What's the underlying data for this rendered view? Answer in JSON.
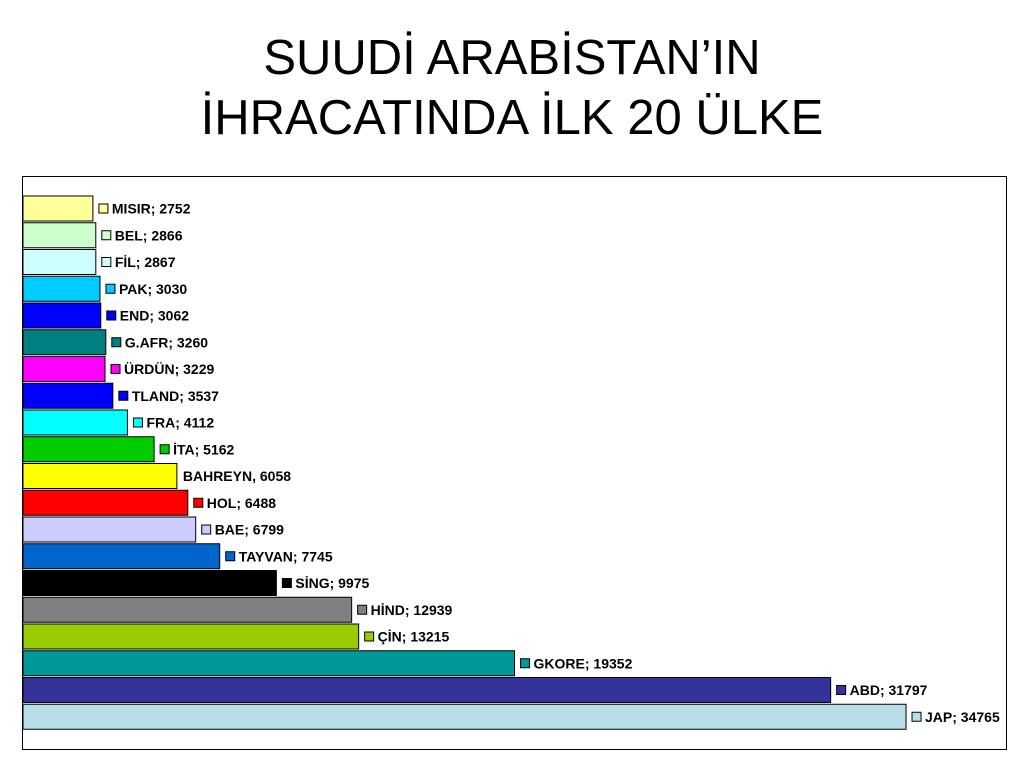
{
  "title": {
    "line1": "SUUDİ ARABİSTAN’IN",
    "line2": "İHRACATINDA İLK 20 ÜLKE"
  },
  "chart_data": {
    "type": "bar",
    "orientation": "horizontal",
    "title": "SUUDİ ARABİSTAN’IN İHRACATINDA İLK 20 ÜLKE",
    "xlabel": "",
    "ylabel": "",
    "grid": false,
    "legend": "none",
    "categories": [
      "MISIR",
      "BEL",
      "FİL",
      "PAK",
      "END",
      "G.AFR",
      "ÜRDÜN",
      "TLAND",
      "FRA",
      "İTA",
      "BAHREYN",
      "HOL",
      "BAE",
      "TAYVAN",
      "SİNG",
      "HİND",
      "ÇİN",
      "GKORE",
      "ABD",
      "JAP"
    ],
    "values": [
      2752,
      2866,
      2867,
      3030,
      3062,
      3260,
      3229,
      3537,
      4112,
      5162,
      6058,
      6488,
      6799,
      7745,
      9975,
      12939,
      13215,
      19352,
      31797,
      34765
    ],
    "data_labels": [
      "MISIR; 2752",
      "BEL; 2866",
      "FİL; 2867",
      "PAK; 3030",
      "END; 3062",
      "G.AFR; 3260",
      "ÜRDÜN; 3229",
      "TLAND; 3537",
      "FRA; 4112",
      "İTA; 5162",
      "BAHREYN, 6058",
      "HOL; 6488",
      "BAE; 6799",
      "TAYVAN; 7745",
      "SİNG; 9975",
      "HİND; 12939",
      "ÇİN; 13215",
      "GKORE; 19352",
      "ABD; 31797",
      "JAP; 34765"
    ],
    "colors": [
      "#FFFF99",
      "#CCFFCC",
      "#CCFFFF",
      "#00CCFF",
      "#0000FF",
      "#008080",
      "#FF00FF",
      "#0000FF",
      "#00FFFF",
      "#00CC00",
      "#FFFF00",
      "#FF0000",
      "#CCCCFF",
      "#0066CC",
      "#000000",
      "#808080",
      "#99CC00",
      "#009999",
      "#333399",
      "#B7DDE8"
    ],
    "legend_key_shown": [
      true,
      true,
      true,
      true,
      true,
      true,
      true,
      true,
      true,
      true,
      false,
      true,
      true,
      true,
      true,
      true,
      true,
      true,
      true,
      true
    ],
    "xlim": [
      0,
      35000
    ]
  }
}
